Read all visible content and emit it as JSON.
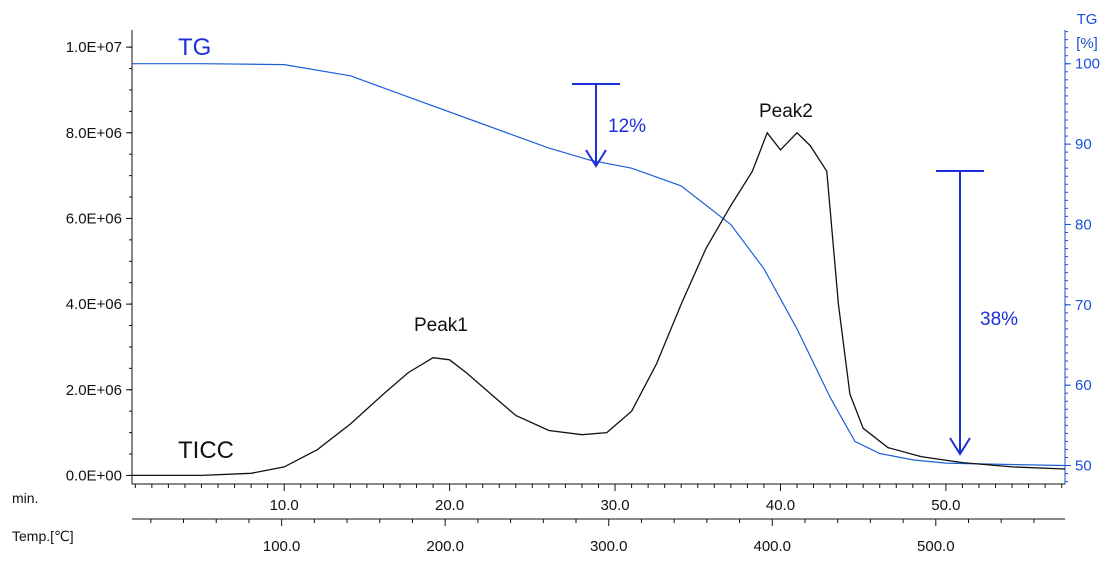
{
  "chart_data": {
    "type": "line",
    "x_axis_min": {
      "label": "min.",
      "ticks": [
        "10.0",
        "20.0",
        "30.0",
        "40.0",
        "50.0"
      ],
      "range": [
        0.8,
        57.2
      ]
    },
    "x_axis_temp": {
      "label": "Temp.[℃]",
      "ticks": [
        "100.0",
        "200.0",
        "300.0",
        "400.0",
        "500.0"
      ]
    },
    "y_axis_left": {
      "ticks": [
        "0.0E+00",
        "2.0E+06",
        "4.0E+06",
        "6.0E+06",
        "8.0E+06",
        "1.0E+07"
      ],
      "range": [
        -200000,
        10400000
      ]
    },
    "y_axis_right": {
      "label_line1": "TG",
      "label_line2": "[%]",
      "ticks": [
        "50",
        "60",
        "70",
        "80",
        "90",
        "100"
      ],
      "range": [
        47.7,
        104.2
      ]
    },
    "series": [
      {
        "name": "TG",
        "color": "#1f5fd6",
        "x": [
          0.8,
          5,
          10,
          14,
          18,
          22,
          26,
          28.5,
          31,
          34,
          37,
          39,
          41,
          43,
          44.5,
          46,
          48,
          50,
          52,
          57.2
        ],
        "y": [
          100.0,
          100.0,
          99.9,
          98.5,
          95.5,
          92.5,
          89.5,
          88.0,
          87.0,
          84.8,
          80.0,
          74.5,
          67.0,
          58.5,
          53.0,
          51.5,
          50.7,
          50.3,
          50.2,
          50.0
        ]
      },
      {
        "name": "TICC",
        "color": "#111111",
        "x": [
          0.8,
          5,
          8,
          10,
          12,
          14,
          16,
          17.5,
          19,
          20,
          21,
          22.5,
          24,
          26,
          28,
          29.5,
          31,
          32.5,
          34,
          35.5,
          37,
          38.3,
          39.2,
          40,
          41,
          41.8,
          42.8,
          43.5,
          44.2,
          45,
          46.5,
          48.5,
          51,
          54,
          57.2
        ],
        "y": [
          0,
          0,
          50000,
          200000,
          600000,
          1200000,
          1900000,
          2400000,
          2750000,
          2700000,
          2400000,
          1900000,
          1400000,
          1050000,
          950000,
          1000000,
          1500000,
          2600000,
          4000000,
          5300000,
          6300000,
          7100000,
          8000000,
          7600000,
          8000000,
          7700000,
          7100000,
          4000000,
          1900000,
          1100000,
          650000,
          440000,
          300000,
          200000,
          150000
        ]
      }
    ],
    "annotations": {
      "tg_title": "TG",
      "ticc_title": "TICC",
      "peak1": "Peak1",
      "peak2": "Peak2",
      "drop1": "12%",
      "drop2": "38%"
    }
  }
}
